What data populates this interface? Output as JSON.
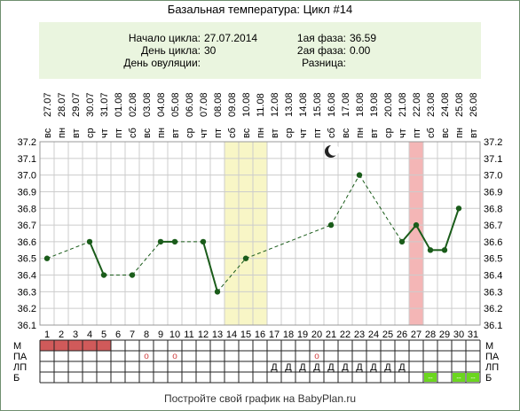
{
  "title": "Базальная температура: Цикл #14",
  "info": {
    "cycle_start_label": "Начало цикла:",
    "cycle_start_value": "27.07.2014",
    "cycle_day_label": "День цикла:",
    "cycle_day_value": "30",
    "ovulation_day_label": "День овуляции:",
    "ovulation_day_value": "",
    "phase1_label": "1ая фаза:",
    "phase1_value": "36.59",
    "phase2_label": "2ая фаза:",
    "phase2_value": "0.00",
    "difference_label": "Разница:",
    "difference_value": ""
  },
  "footer": "Постройте свой график на BabyPlan.ru",
  "chart_data": {
    "type": "line",
    "x": [
      1,
      2,
      3,
      4,
      5,
      6,
      7,
      8,
      9,
      10,
      11,
      12,
      13,
      14,
      15,
      16,
      17,
      18,
      19,
      20,
      21,
      22,
      23,
      24,
      25,
      26,
      27,
      28,
      29,
      30,
      31
    ],
    "dates": [
      "27.07",
      "28.07",
      "29.07",
      "30.07",
      "31.07",
      "01.08",
      "02.08",
      "03.08",
      "04.08",
      "05.08",
      "06.08",
      "07.08",
      "08.08",
      "09.08",
      "10.08",
      "11.08",
      "12.08",
      "13.08",
      "14.08",
      "15.08",
      "16.08",
      "17.08",
      "18.08",
      "19.08",
      "20.08",
      "21.08",
      "22.08",
      "23.08",
      "24.08",
      "25.08",
      "26.08"
    ],
    "weekdays": [
      "вс",
      "пн",
      "вт",
      "ср",
      "чт",
      "пт",
      "сб",
      "вс",
      "пн",
      "вт",
      "ср",
      "чт",
      "пт",
      "сб",
      "вс",
      "пн",
      "вт",
      "ср",
      "чт",
      "пт",
      "сб",
      "вс",
      "пн",
      "вт",
      "ср",
      "чт",
      "пт",
      "сб",
      "вс",
      "пн",
      "вт"
    ],
    "series": [
      {
        "values": [
          36.5,
          null,
          null,
          36.6,
          36.4,
          null,
          36.4,
          null,
          36.6,
          36.6,
          null,
          36.6,
          36.3,
          null,
          36.5,
          null,
          null,
          null,
          null,
          null,
          36.7,
          null,
          37.0,
          null,
          null,
          36.6,
          36.7,
          36.55,
          36.55,
          36.8,
          null
        ]
      }
    ],
    "ylim": [
      36.1,
      37.2
    ],
    "yticks": [
      "36.1",
      "36.2",
      "36.3",
      "36.4",
      "36.5",
      "36.6",
      "36.7",
      "36.8",
      "36.9",
      "37.0",
      "37.1",
      "37.2"
    ],
    "highlighted_days": {
      "yellow": [
        14,
        15,
        16
      ],
      "red": [
        27
      ]
    },
    "moon_day": 21,
    "grid": true,
    "colors": {
      "line": "#1a5c1a",
      "yellow_band": "#f8f6c6",
      "red_band": "#f4b6b6",
      "menstruation": "#d05a5a",
      "marker_green": "#6bd61e",
      "grid": "#cccccc"
    },
    "bottom_rows": {
      "labels": [
        "М",
        "ПА",
        "ЛП",
        "Б"
      ],
      "menstruation_days": [
        1,
        2,
        3,
        4,
        5
      ],
      "pa_days": [
        8,
        10,
        20
      ],
      "pa_symbol": "о",
      "lp_days": [
        17,
        18,
        19,
        20,
        21,
        22,
        23,
        24,
        25,
        26
      ],
      "lp_symbol": "Д",
      "b_days": [
        28,
        30,
        31
      ],
      "b_symbol": "--"
    }
  }
}
